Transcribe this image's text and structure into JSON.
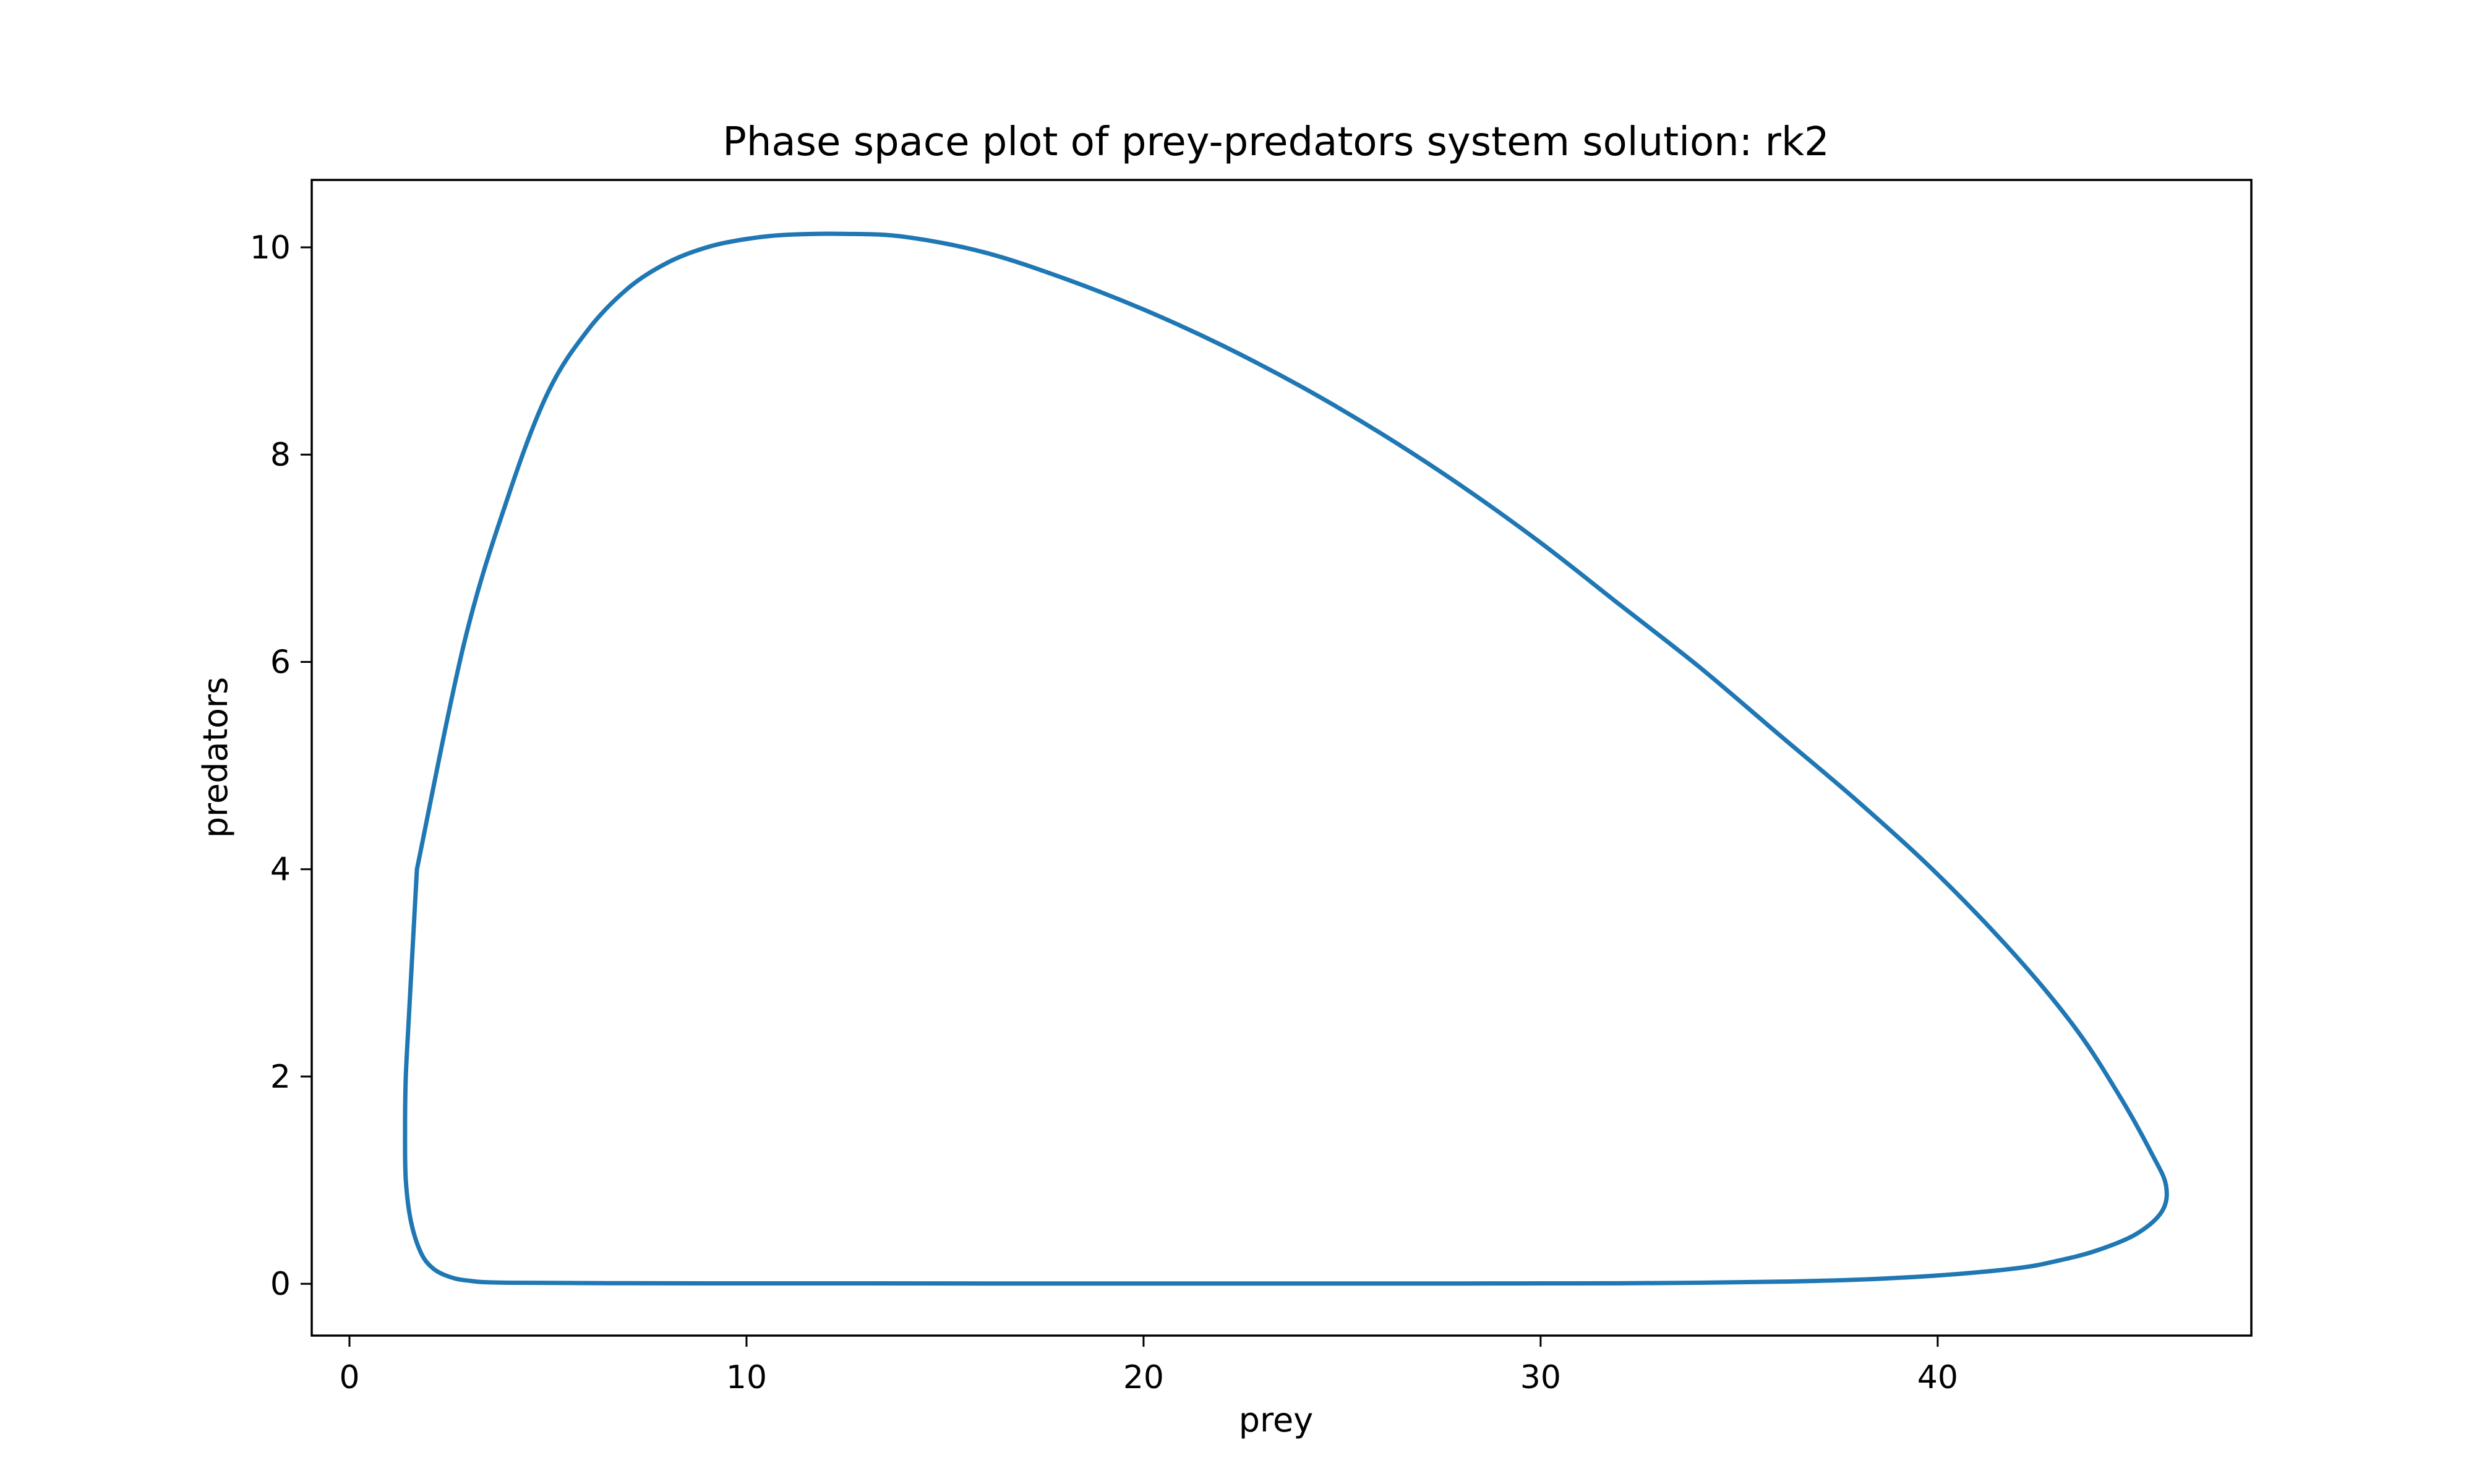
{
  "chart_data": {
    "type": "line",
    "title": "Phase space plot of prey-predators system solution: rk2",
    "xlabel": "prey",
    "ylabel": "predators",
    "xlim": [
      -0.95,
      47.9
    ],
    "ylim": [
      -0.5,
      10.65
    ],
    "xticks": [
      0,
      10,
      20,
      30,
      40
    ],
    "yticks": [
      0,
      2,
      4,
      6,
      8,
      10
    ],
    "grid": false,
    "legend": "none",
    "series": [
      {
        "color": "#1f77b4",
        "x": [
          1.7,
          2.9,
          4,
          5,
          6,
          7,
          8,
          9,
          10,
          11,
          12.5,
          14,
          16,
          18,
          20,
          22,
          24,
          26,
          28,
          30,
          32,
          34,
          36,
          38,
          40,
          42,
          43.5,
          44.6,
          45.4,
          45.75,
          45.65,
          45,
          44,
          43,
          42,
          40,
          38,
          36,
          34,
          32,
          30,
          28,
          24,
          20,
          16,
          12,
          8,
          4,
          3,
          2.5,
          2.1,
          1.8,
          1.55,
          1.42,
          1.4,
          1.42,
          1.5,
          1.6,
          1.7
        ],
        "y": [
          4.0,
          6.2,
          7.6,
          8.6,
          9.2,
          9.6,
          9.85,
          10.0,
          10.08,
          10.12,
          10.13,
          10.1,
          9.95,
          9.7,
          9.4,
          9.05,
          8.65,
          8.2,
          7.7,
          7.15,
          6.55,
          5.95,
          5.3,
          4.65,
          3.95,
          3.15,
          2.45,
          1.8,
          1.25,
          0.95,
          0.7,
          0.48,
          0.32,
          0.22,
          0.15,
          0.08,
          0.04,
          0.02,
          0.01,
          0.005,
          0.004,
          0.003,
          0.003,
          0.003,
          0.003,
          0.004,
          0.005,
          0.01,
          0.03,
          0.07,
          0.15,
          0.3,
          0.6,
          1.0,
          1.5,
          2.0,
          2.6,
          3.3,
          4.0
        ]
      }
    ]
  }
}
